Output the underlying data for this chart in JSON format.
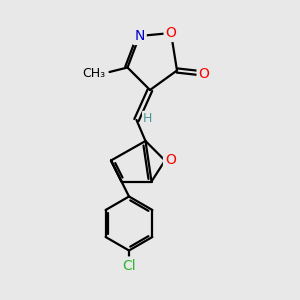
{
  "background_color": "#e8e8e8",
  "bond_color": "#000000",
  "atom_colors": {
    "O": "#ff0000",
    "N": "#0000cd",
    "Cl": "#2db52d",
    "H": "#4d9999",
    "C": "#000000"
  },
  "line_width": 1.6,
  "font_size_atom": 10,
  "font_size_methyl": 9,
  "font_size_H": 9
}
